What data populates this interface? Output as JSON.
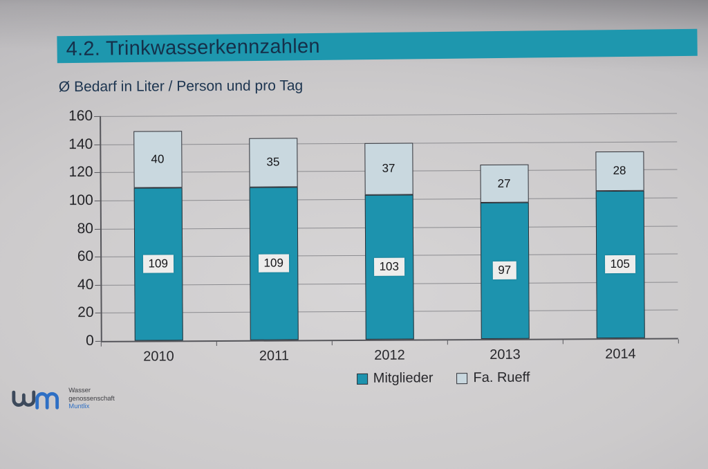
{
  "slide": {
    "title": "4.2. Trinkwasserkennzahlen",
    "subtitle": "Ø Bedarf in Liter / Person und pro Tag"
  },
  "chart_data": {
    "type": "bar",
    "stacked": true,
    "title": "Ø Bedarf in Liter / Person und pro Tag",
    "xlabel": "",
    "ylabel": "",
    "categories": [
      "2010",
      "2011",
      "2012",
      "2013",
      "2014"
    ],
    "series": [
      {
        "name": "Mitglieder",
        "color": "#1d93ae",
        "values": [
          109,
          109,
          103,
          97,
          105
        ]
      },
      {
        "name": "Fa. Rueff",
        "color": "#c9d8df",
        "values": [
          40,
          35,
          37,
          27,
          28
        ]
      }
    ],
    "totals": [
      149,
      144,
      140,
      124,
      133
    ],
    "ylim": [
      0,
      160
    ],
    "yticks": [
      0,
      20,
      40,
      60,
      80,
      100,
      120,
      140,
      160
    ],
    "grid": "horizontal",
    "legend_position": "bottom"
  },
  "colors": {
    "banner": "#1e97ae",
    "mitglieder_fill": "#1d93ae",
    "rueff_fill": "#c9d8df",
    "gridline": "#8b8b8f",
    "label_box_bg": "#ededec"
  },
  "logo": {
    "mark": "wm",
    "line1": "Wasser",
    "line2": "genossenschaft",
    "line3": "Muntlix"
  }
}
